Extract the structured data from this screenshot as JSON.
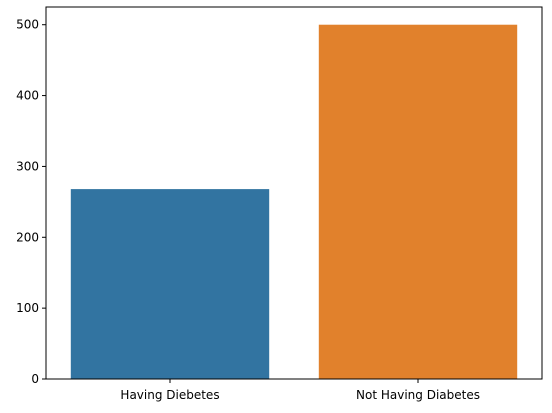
{
  "chart_data": {
    "type": "bar",
    "categories": [
      "Having Diebetes",
      "Not Having Diabetes"
    ],
    "values": [
      268,
      500
    ],
    "colors": [
      "#3274a1",
      "#e1812c"
    ],
    "yticks": [
      0,
      100,
      200,
      300,
      400,
      500
    ],
    "ylim": [
      0,
      525
    ],
    "title": "",
    "xlabel": "",
    "ylabel": "",
    "grid": false,
    "legend": false
  }
}
